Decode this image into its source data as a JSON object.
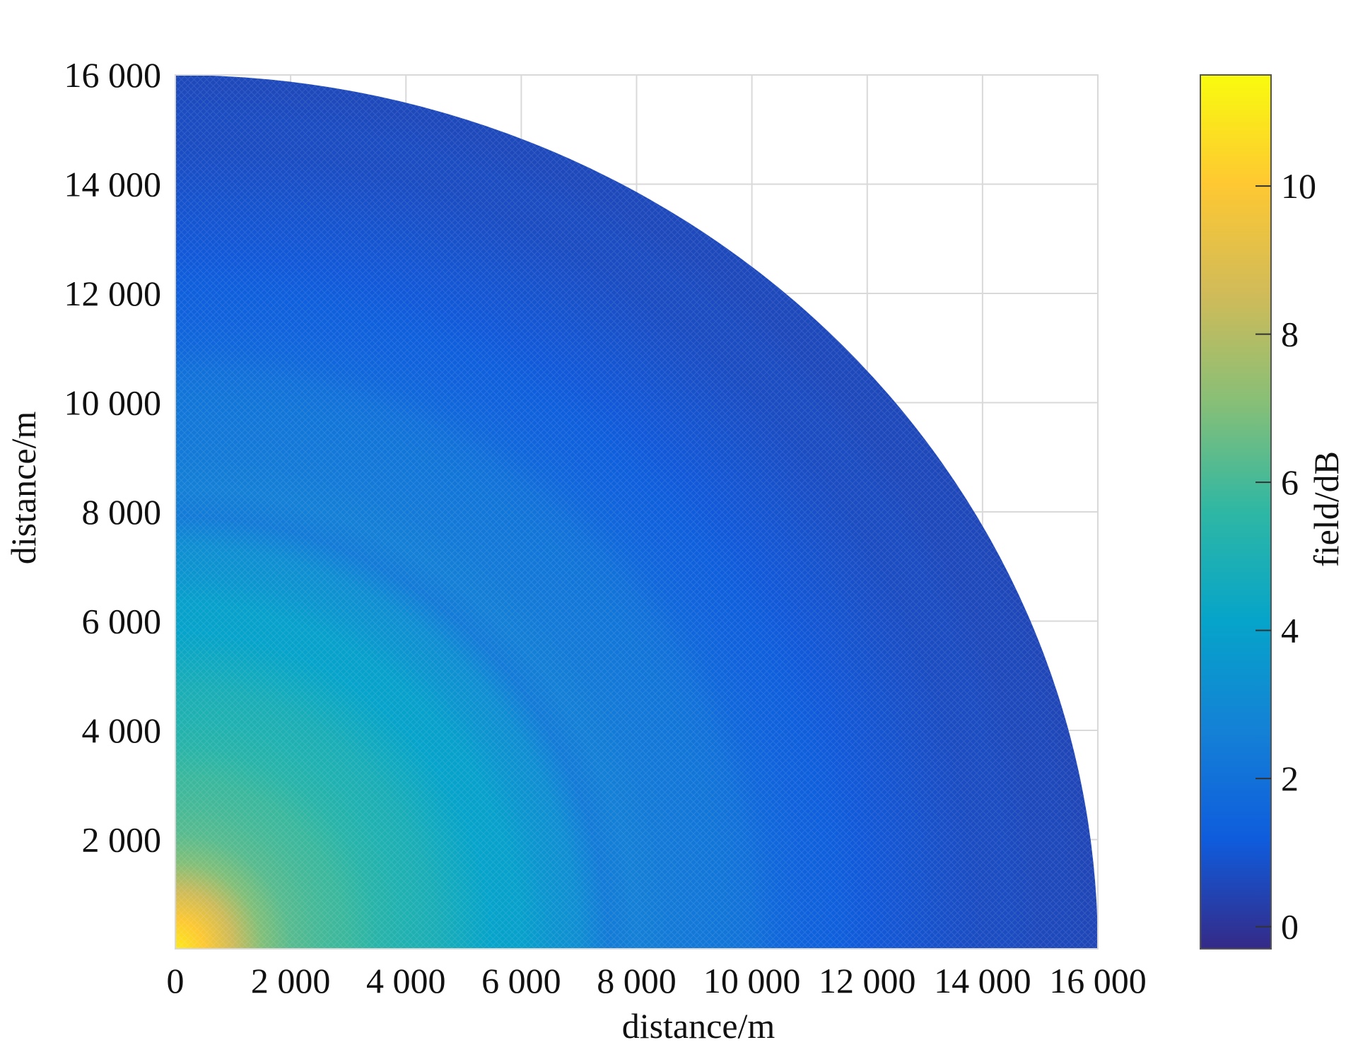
{
  "chart_data": {
    "type": "heatmap",
    "description_shape": "quarter-disc",
    "xlabel": "distance/m",
    "ylabel": "distance/m",
    "colorbar_label": "field/dB",
    "xlim": [
      0,
      16000
    ],
    "ylim": [
      0,
      16000
    ],
    "x_ticks": [
      0,
      2000,
      4000,
      6000,
      8000,
      10000,
      12000,
      14000,
      16000
    ],
    "x_tick_labels": [
      "0",
      "2 000",
      "4 000",
      "6 000",
      "8 000",
      "10 000",
      "12 000",
      "14 000",
      "16 000"
    ],
    "y_ticks": [
      2000,
      4000,
      6000,
      8000,
      10000,
      12000,
      14000,
      16000
    ],
    "y_tick_labels": [
      "2 000",
      "4 000",
      "6 000",
      "8 000",
      "10 000",
      "12 000",
      "14 000",
      "16 000"
    ],
    "colorbar_range": [
      -0.3,
      11.5
    ],
    "colorbar_ticks": [
      0,
      2,
      4,
      6,
      8,
      10
    ],
    "colorbar_tick_labels": [
      "0",
      "2",
      "4",
      "6",
      "8",
      "10"
    ],
    "grid": true,
    "colormap": "parula",
    "colormap_stops": [
      "#352a87",
      "#0f5cdd",
      "#1481d6",
      "#06a4ca",
      "#2eb7a4",
      "#87bf77",
      "#d1bb59",
      "#fec832",
      "#f9fb0e"
    ],
    "max_radius": 16000,
    "radial_profile": {
      "r": [
        0,
        500,
        1000,
        1500,
        2000,
        2500,
        3000,
        3500,
        4000,
        4500,
        5000,
        5500,
        6000,
        6500,
        7000,
        7500,
        8000,
        8500,
        9000,
        9500,
        10000,
        10500,
        11000,
        11500,
        12000,
        12500,
        13000,
        13500,
        14000,
        14500,
        15000,
        15500,
        16000
      ],
      "value": [
        11,
        10,
        8.5,
        7,
        6.3,
        6,
        5.8,
        5.4,
        5.1,
        4.9,
        4.5,
        4.1,
        4,
        3.5,
        3.2,
        2.4,
        2.6,
        2.4,
        2.3,
        2.2,
        2.0,
        1.6,
        1.4,
        1.3,
        1.1,
        1.0,
        0.9,
        0.8,
        0.7,
        0.7,
        0.6,
        0.6,
        0.5
      ]
    }
  }
}
